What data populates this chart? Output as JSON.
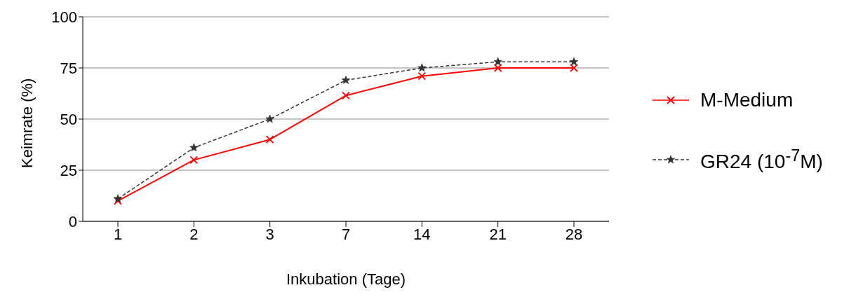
{
  "chart_data": {
    "type": "line",
    "xlabel": "Inkubation (Tage)",
    "ylabel": "Keimrate (%)",
    "categories": [
      "1",
      "2",
      "3",
      "7",
      "14",
      "21",
      "28"
    ],
    "series": [
      {
        "name": "M-Medium",
        "color": "#ff0000",
        "marker": "cross",
        "line_style": "solid",
        "values": [
          10,
          30,
          40,
          61.5,
          71,
          75,
          75
        ]
      },
      {
        "name": "GR24 (10$^{-7}$M)",
        "color": "#333333",
        "marker": "star",
        "line_style": "dashed",
        "values": [
          11,
          36,
          50,
          69,
          75,
          78,
          78
        ]
      }
    ],
    "ylim": [
      0,
      100
    ],
    "yticks": [
      0,
      25,
      50,
      75,
      100
    ],
    "grid": "y",
    "legend": "right"
  }
}
